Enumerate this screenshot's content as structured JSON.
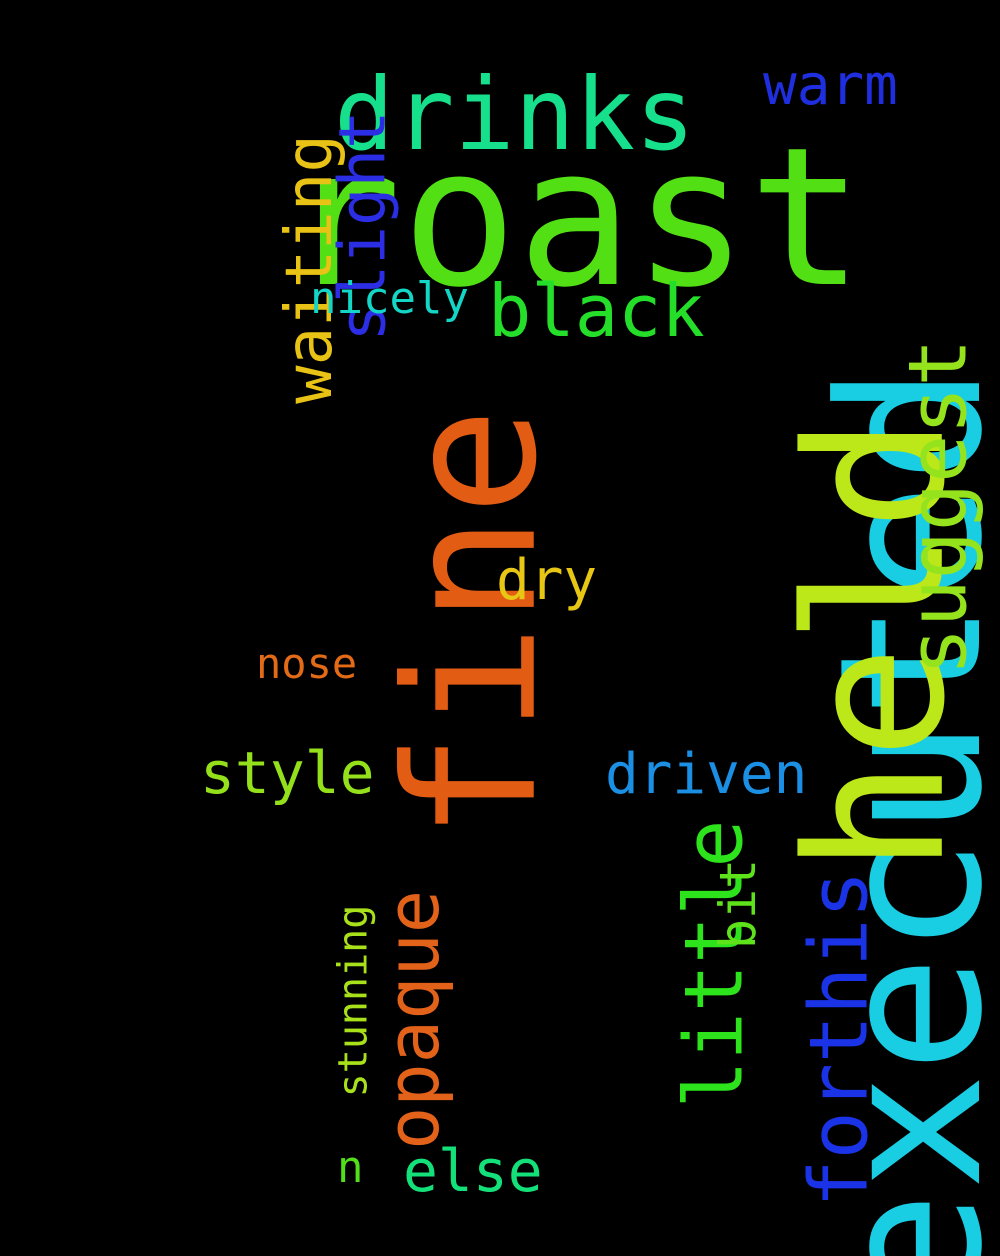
{
  "words": [
    {
      "key": "roast",
      "text": "roast",
      "color": "#52e014",
      "rotated": false
    },
    {
      "key": "executed",
      "text": "executed",
      "color": "#19cde3",
      "rotated": true
    },
    {
      "key": "held",
      "text": "held",
      "color": "#bce81a",
      "rotated": true
    },
    {
      "key": "fine",
      "text": "fine",
      "color": "#e35c14",
      "rotated": true
    },
    {
      "key": "drinks",
      "text": "drinks",
      "color": "#16e08b",
      "rotated": false
    },
    {
      "key": "little",
      "text": "little",
      "color": "#2de41c",
      "rotated": true
    },
    {
      "key": "forthis",
      "text": "forthis",
      "color": "#1b33e6",
      "rotated": true
    },
    {
      "key": "suggest",
      "text": "suggest",
      "color": "#94e31c",
      "rotated": true
    },
    {
      "key": "opaque",
      "text": "opaque",
      "color": "#e3621a",
      "rotated": true
    },
    {
      "key": "waiting",
      "text": "waiting",
      "color": "#e8c214",
      "rotated": true
    },
    {
      "key": "black",
      "text": "black",
      "color": "#24de2a",
      "rotated": false
    },
    {
      "key": "slight",
      "text": "slight",
      "color": "#2b2ee4",
      "rotated": true
    },
    {
      "key": "warm",
      "text": "warm",
      "color": "#1f2fe0",
      "rotated": false
    },
    {
      "key": "driven",
      "text": "driven",
      "color": "#1a8fe3",
      "rotated": false
    },
    {
      "key": "style",
      "text": "style",
      "color": "#94e01b",
      "rotated": false
    },
    {
      "key": "else",
      "text": "else",
      "color": "#14e07a",
      "rotated": false
    },
    {
      "key": "dry",
      "text": "dry",
      "color": "#e8c614",
      "rotated": false
    },
    {
      "key": "nicely",
      "text": "nicely",
      "color": "#14d6c6",
      "rotated": false
    },
    {
      "key": "nose",
      "text": "nose",
      "color": "#e36a17",
      "rotated": false
    },
    {
      "key": "stunning",
      "text": "stunning",
      "color": "#a8e01a",
      "rotated": true
    },
    {
      "key": "bit",
      "text": "bit",
      "color": "#5ee21a",
      "rotated": true
    },
    {
      "key": "n",
      "text": "n",
      "color": "#52de18",
      "rotated": false
    }
  ]
}
